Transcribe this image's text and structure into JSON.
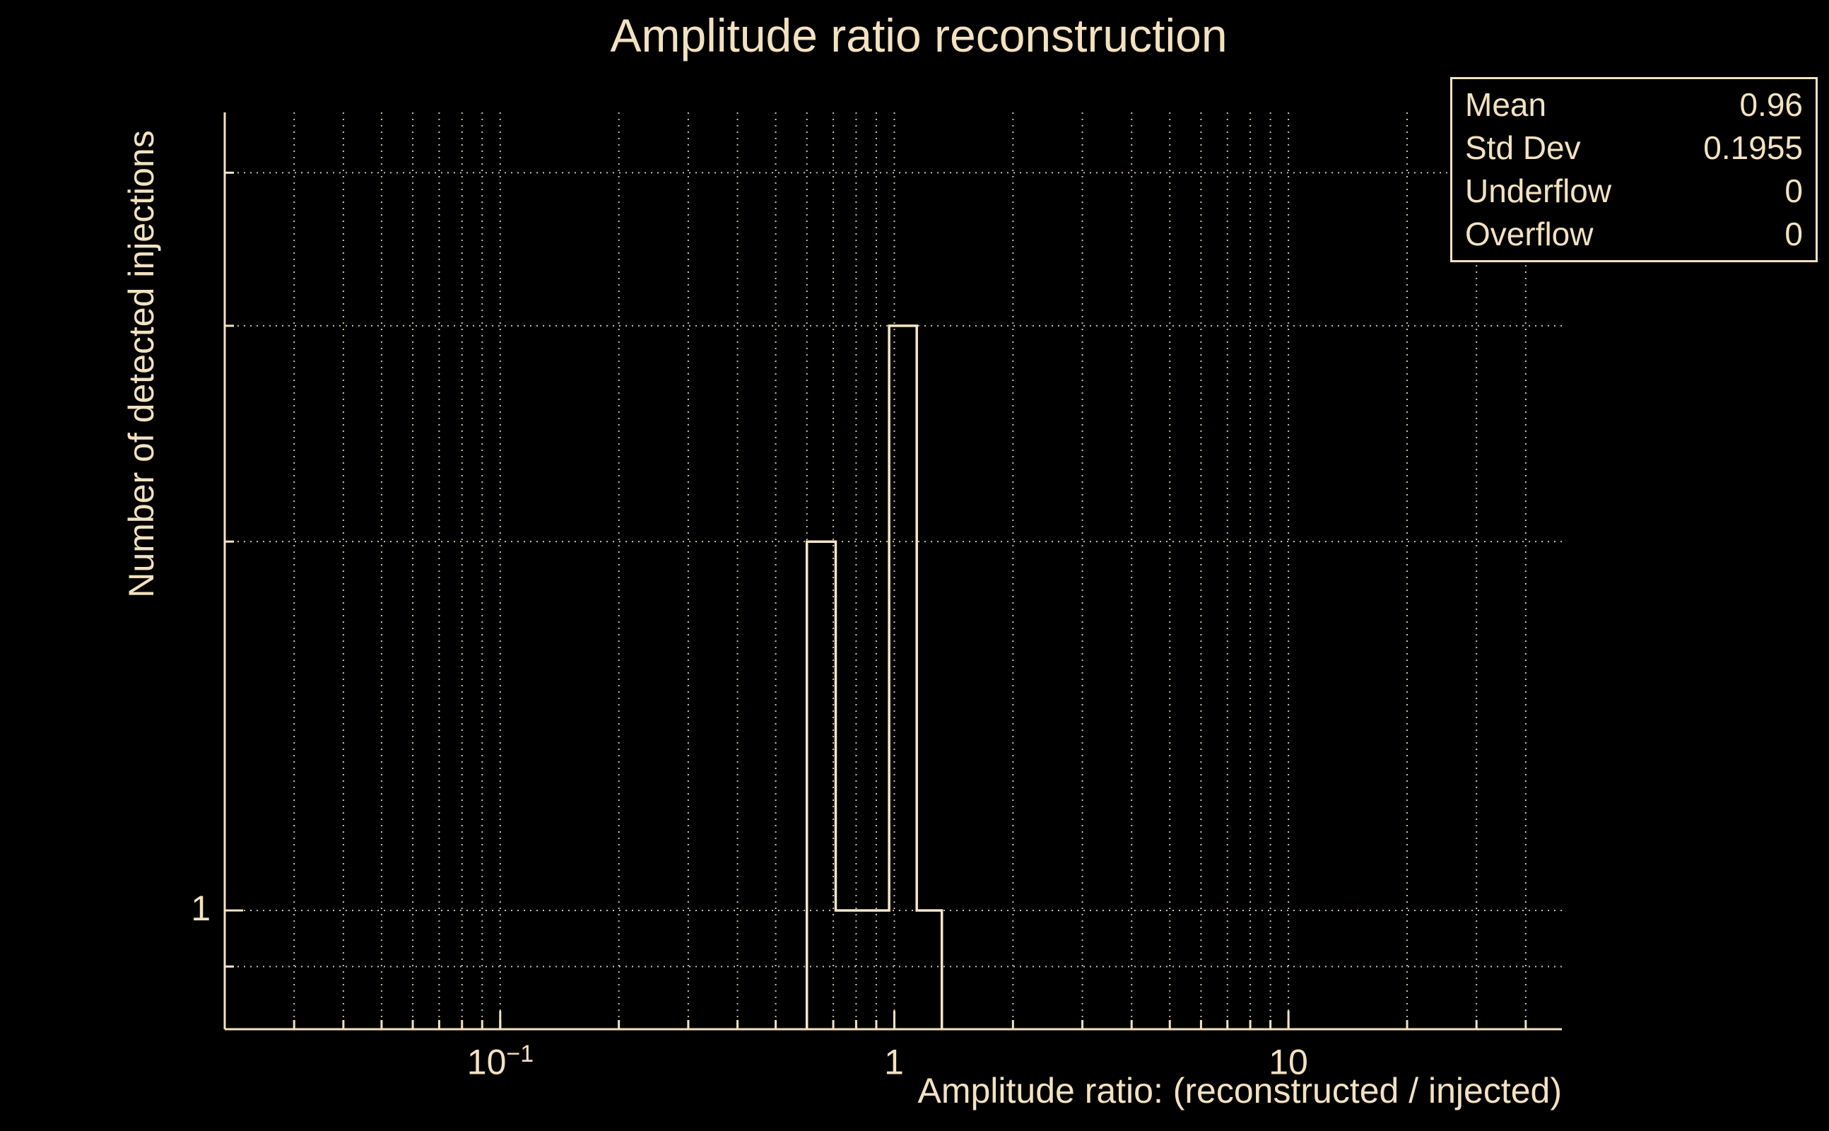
{
  "colors": {
    "background": "#000000",
    "foreground": "#f3e2c0"
  },
  "stats_box": {
    "rows": [
      {
        "label": "Mean",
        "value": "0.96"
      },
      {
        "label": "Std Dev",
        "value": "0.1955"
      },
      {
        "label": "Underflow",
        "value": "0"
      },
      {
        "label": "Overflow",
        "value": "0"
      }
    ]
  },
  "axes": {
    "x_ticks": [
      {
        "value": 0.1,
        "base": "10",
        "exp": "−1"
      },
      {
        "value": 1,
        "base": "1",
        "exp": ""
      },
      {
        "value": 10,
        "base": "10",
        "exp": ""
      }
    ],
    "y_ticks": [
      {
        "value": 1,
        "label": "1"
      }
    ]
  },
  "chart_data": {
    "type": "bar",
    "subtype": "step-histogram",
    "title": "Amplitude ratio reconstruction",
    "xlabel": "Amplitude ratio: (reconstructed / injected)",
    "ylabel": "Number of detected injections",
    "x_scale": "log",
    "y_scale": "log",
    "x_range": [
      0.02,
      49.4
    ],
    "y_range": [
      0.8,
      4.48
    ],
    "bin_edges": [
      0.6,
      0.71,
      0.83,
      0.97,
      1.14,
      1.32
    ],
    "counts": [
      2,
      1,
      1,
      3,
      1
    ],
    "stats": {
      "mean": 0.96,
      "std_dev": 0.1955,
      "underflow": 0,
      "overflow": 0
    },
    "x_gridlines": [
      0.03,
      0.04,
      0.05,
      0.06,
      0.07,
      0.08,
      0.09,
      0.1,
      0.2,
      0.3,
      0.4,
      0.5,
      0.6,
      0.7,
      0.8,
      0.9,
      1,
      2,
      3,
      4,
      5,
      6,
      7,
      8,
      9,
      10,
      20,
      30,
      40
    ],
    "y_gridlines": [
      0.9,
      1,
      2,
      3,
      4
    ],
    "grid": true,
    "legend": "none"
  }
}
